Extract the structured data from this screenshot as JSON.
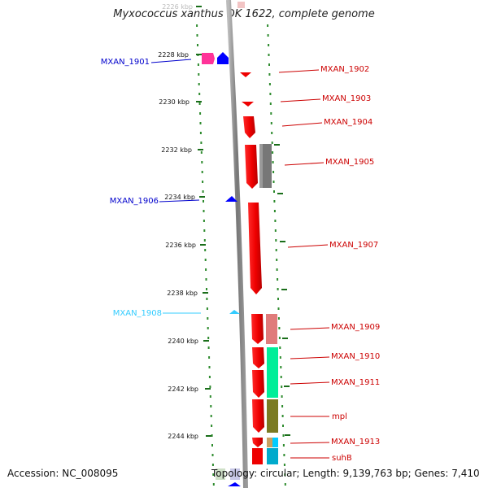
{
  "title": "Myxococcus xanthus DK 1622, complete genome",
  "footer": {
    "accession": "Accession: NC_008095",
    "summary": "Topology: circular; Length: 9,139,763 bp; Genes: 7,410"
  },
  "scale": {
    "unit": "kbp",
    "ticks": [
      "2226 kbp",
      "2228 kbp",
      "2230 kbp",
      "2232 kbp",
      "2234 kbp",
      "2236 kbp",
      "2238 kbp",
      "2240 kbp",
      "2242 kbp",
      "2244 kbp"
    ]
  },
  "genes_left": [
    {
      "label": "MXAN_1901",
      "color": "#0000cc"
    },
    {
      "label": "MXAN_1906",
      "color": "#0000cc"
    },
    {
      "label": "MXAN_1908",
      "color": "#33ccff"
    }
  ],
  "genes_right": [
    {
      "label": "MXAN_1902",
      "color": "#cc0000"
    },
    {
      "label": "MXAN_1903",
      "color": "#cc0000"
    },
    {
      "label": "MXAN_1904",
      "color": "#cc0000"
    },
    {
      "label": "MXAN_1905",
      "color": "#cc0000"
    },
    {
      "label": "MXAN_1907",
      "color": "#cc0000"
    },
    {
      "label": "MXAN_1909",
      "color": "#cc0000"
    },
    {
      "label": "MXAN_1910",
      "color": "#cc0000"
    },
    {
      "label": "MXAN_1911",
      "color": "#cc0000"
    },
    {
      "label": "mpl",
      "color": "#cc0000"
    },
    {
      "label": "MXAN_1913",
      "color": "#cc0000"
    },
    {
      "label": "suhB",
      "color": "#cc0000"
    }
  ]
}
